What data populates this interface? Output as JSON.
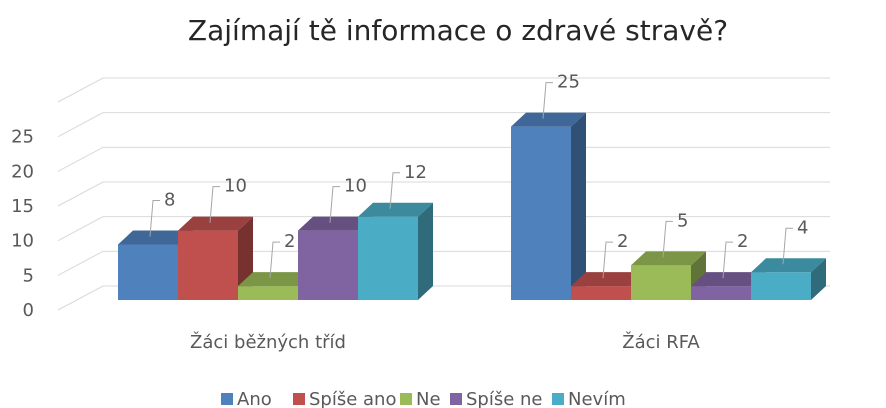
{
  "chart_data": {
    "type": "bar3d",
    "title": "Zajímají tě informace o zdravé stravě?",
    "categories": [
      "Žáci běžných tříd",
      "Žáci RFA"
    ],
    "series": [
      {
        "name": "Ano",
        "color": "#4f81bd",
        "values": [
          8,
          25
        ]
      },
      {
        "name": "Spíše ano",
        "color": "#c0504d",
        "values": [
          10,
          2
        ]
      },
      {
        "name": "Ne",
        "color": "#9bbb59",
        "values": [
          2,
          5
        ]
      },
      {
        "name": "Spíše ne",
        "color": "#8064a2",
        "values": [
          10,
          2
        ]
      },
      {
        "name": "Nevím",
        "color": "#4bacc6",
        "values": [
          12,
          4
        ]
      }
    ],
    "ylim": [
      0,
      30
    ],
    "yticks": [
      0,
      5,
      10,
      15,
      20,
      25
    ],
    "grid": true,
    "legend": "bottom"
  }
}
